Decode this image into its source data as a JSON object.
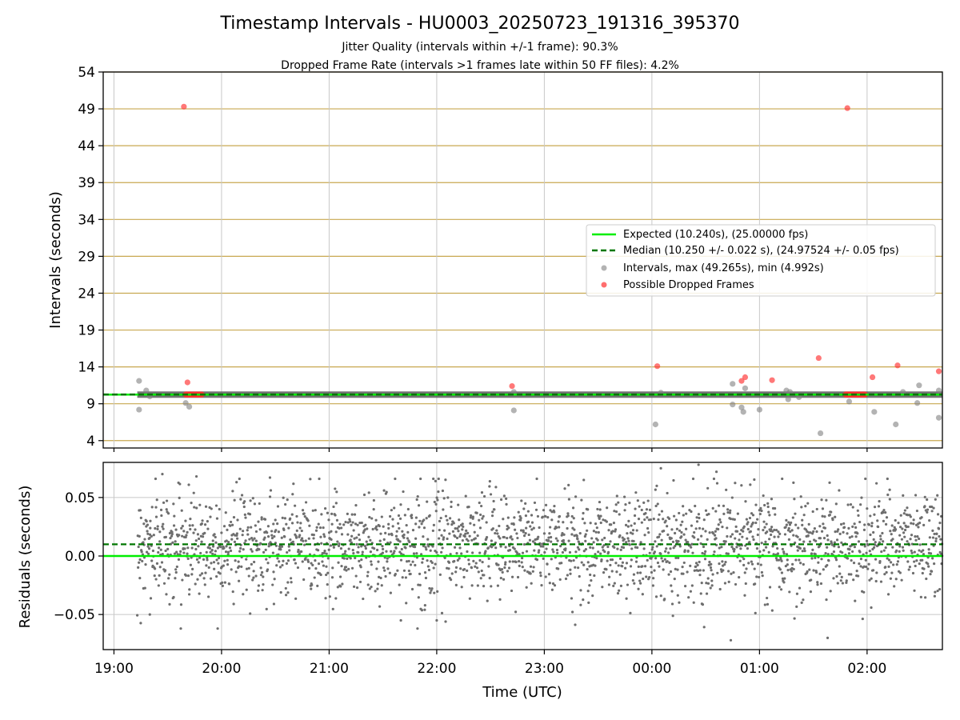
{
  "title": "Timestamp Intervals - HU0003_20250723_191316_395370",
  "subtitle_1": "Jitter Quality (intervals within +/-1 frame): 90.3%",
  "subtitle_2": "Dropped Frame Rate (intervals >1 frames late within 50 FF files): 4.2%",
  "colors": {
    "expected": "#00ee00",
    "median": "#007700",
    "intervals": "#808080",
    "dropped": "#ff3030",
    "hgrid": "#c8a850",
    "grid": "#c8c8c8",
    "band": "#5a5a5a"
  },
  "chart_data": [
    {
      "type": "scatter",
      "ylabel": "Intervals (seconds)",
      "ylim": [
        3,
        54
      ],
      "y_ticks": [
        "54",
        "49",
        "44",
        "39",
        "34",
        "29",
        "24",
        "19",
        "14",
        "9",
        "4"
      ],
      "x_ticks": [
        "19:00",
        "20:00",
        "21:00",
        "22:00",
        "23:00",
        "00:00",
        "01:00",
        "02:00"
      ],
      "xlim": [
        "18:54",
        "02:42"
      ],
      "grid": true,
      "legend_placement": "center-right",
      "legend": [
        "Expected (10.240s), (25.00000 fps)",
        "Median (10.250 +/- 0.022 s), (24.97524 +/- 0.05 fps)",
        "Intervals, max (49.265s), min (4.992s)",
        "Possible Dropped Frames"
      ],
      "expected": 10.24,
      "median": 10.25,
      "series": [
        {
          "name": "Intervals",
          "time_range": [
            "19:13",
            "02:42"
          ],
          "typical_value": 10.24,
          "outliers": [
            {
              "x": "19:14",
              "y": 12.1
            },
            {
              "x": "19:14",
              "y": 8.2
            },
            {
              "x": "19:18",
              "y": 10.8
            },
            {
              "x": "19:20",
              "y": 10.0
            },
            {
              "x": "19:40",
              "y": 9.1
            },
            {
              "x": "19:42",
              "y": 8.6
            },
            {
              "x": "22:43",
              "y": 8.1
            },
            {
              "x": "22:43",
              "y": 10.6
            },
            {
              "x": "00:02",
              "y": 6.2
            },
            {
              "x": "00:05",
              "y": 10.5
            },
            {
              "x": "00:45",
              "y": 11.7
            },
            {
              "x": "00:45",
              "y": 8.9
            },
            {
              "x": "00:50",
              "y": 8.5
            },
            {
              "x": "00:51",
              "y": 7.9
            },
            {
              "x": "00:52",
              "y": 11.1
            },
            {
              "x": "01:00",
              "y": 8.2
            },
            {
              "x": "01:15",
              "y": 10.8
            },
            {
              "x": "01:16",
              "y": 9.6
            },
            {
              "x": "01:17",
              "y": 10.6
            },
            {
              "x": "01:22",
              "y": 9.9
            },
            {
              "x": "01:34",
              "y": 5.0
            },
            {
              "x": "01:50",
              "y": 9.3
            },
            {
              "x": "02:04",
              "y": 7.9
            },
            {
              "x": "02:16",
              "y": 6.2
            },
            {
              "x": "02:20",
              "y": 10.6
            },
            {
              "x": "02:28",
              "y": 9.1
            },
            {
              "x": "02:29",
              "y": 11.5
            },
            {
              "x": "02:40",
              "y": 7.1
            },
            {
              "x": "02:40",
              "y": 10.8
            }
          ]
        },
        {
          "name": "Possible Dropped Frames",
          "points": [
            {
              "x": "19:39",
              "y": 49.3
            },
            {
              "x": "19:41",
              "y": 11.9
            },
            {
              "x": "22:42",
              "y": 11.4
            },
            {
              "x": "00:03",
              "y": 14.1
            },
            {
              "x": "00:50",
              "y": 12.1
            },
            {
              "x": "00:52",
              "y": 12.6
            },
            {
              "x": "01:07",
              "y": 12.2
            },
            {
              "x": "01:33",
              "y": 15.2
            },
            {
              "x": "01:49",
              "y": 49.1
            },
            {
              "x": "02:03",
              "y": 12.6
            },
            {
              "x": "02:17",
              "y": 14.2
            },
            {
              "x": "02:40",
              "y": 13.4
            }
          ],
          "clusters": [
            {
              "x_range": [
                "19:40",
                "19:49"
              ],
              "y": 10.25
            },
            {
              "x_range": [
                "01:48",
                "01:59"
              ],
              "y": 10.25
            }
          ]
        }
      ]
    },
    {
      "type": "scatter",
      "xlabel": "Time (UTC)",
      "ylabel": "Residuals (seconds)",
      "ylim": [
        -0.08,
        0.08
      ],
      "y_ticks": [
        "0.05",
        "0.00",
        "−0.05"
      ],
      "x_ticks": [
        "19:00",
        "20:00",
        "21:00",
        "22:00",
        "23:00",
        "00:00",
        "01:00",
        "02:00"
      ],
      "grid": true,
      "expected": 0.0,
      "median": 0.01,
      "series": [
        {
          "name": "Residuals",
          "time_range": [
            "19:13",
            "02:42"
          ],
          "center": 0.01,
          "spread_sd": 0.022,
          "extremes": [
            {
              "x": "19:27",
              "y": 0.07
            },
            {
              "x": "19:46",
              "y": 0.068
            },
            {
              "x": "20:27",
              "y": 0.067
            },
            {
              "x": "00:05",
              "y": 0.075
            },
            {
              "x": "00:26",
              "y": 0.078
            },
            {
              "x": "00:36",
              "y": 0.072
            },
            {
              "x": "23:22",
              "y": 0.065
            },
            {
              "x": "00:44",
              "y": -0.072
            },
            {
              "x": "01:38",
              "y": -0.07
            },
            {
              "x": "19:20",
              "y": -0.05
            },
            {
              "x": "21:40",
              "y": -0.055
            },
            {
              "x": "22:00",
              "y": -0.055
            }
          ]
        }
      ]
    }
  ]
}
